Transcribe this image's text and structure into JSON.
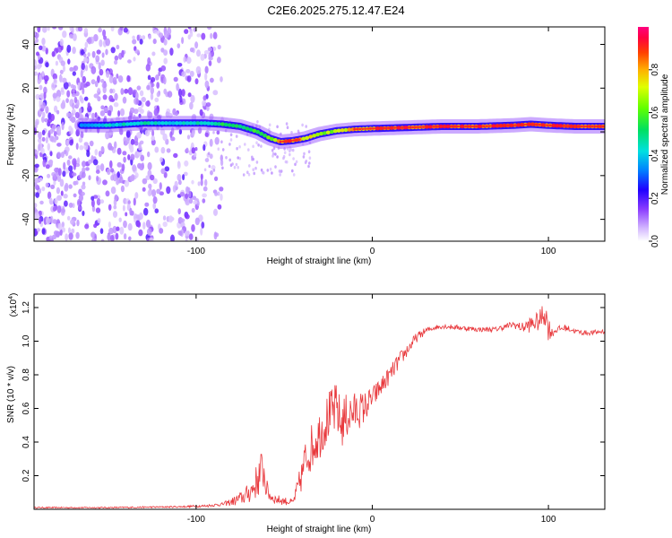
{
  "title": "C2E6.2025.275.12.47.E24",
  "chart_data": [
    {
      "type": "heatmap",
      "name": "spectrogram",
      "xlabel": "Height of straight line (km)",
      "ylabel": "Frequency (Hz)",
      "xlim": [
        -192,
        132
      ],
      "ylim": [
        -50,
        48
      ],
      "xticks": [
        -100,
        0,
        100
      ],
      "xtick_labels": [
        "-100",
        "0",
        "100"
      ],
      "yticks": [
        -40,
        -20,
        0,
        20,
        40
      ],
      "ytick_labels": [
        "-40",
        "-20",
        "0",
        "20",
        "40"
      ],
      "colorbar": {
        "label": "Normalized spectral amplitude",
        "range": [
          0,
          1
        ],
        "ticks": [
          0.0,
          0.2,
          0.4,
          0.6,
          0.8
        ],
        "tick_labels": [
          "0.0",
          "0.2",
          "0.4",
          "0.6",
          "0.8"
        ]
      },
      "ridge": {
        "x": [
          -165,
          -150,
          -130,
          -110,
          -95,
          -85,
          -75,
          -65,
          -58,
          -52,
          -45,
          -38,
          -30,
          -20,
          -10,
          0,
          20,
          40,
          60,
          80,
          90,
          100,
          115,
          130
        ],
        "freq": [
          3,
          3,
          4,
          4,
          4,
          3.5,
          2.5,
          0,
          -3,
          -4.5,
          -4,
          -3,
          -1,
          0.5,
          1.2,
          1.5,
          2,
          2.5,
          2.5,
          3,
          3.5,
          3,
          2.5,
          2.5
        ],
        "amp": [
          0.35,
          0.45,
          0.5,
          0.45,
          0.5,
          0.55,
          0.55,
          0.6,
          0.65,
          0.85,
          0.9,
          0.8,
          0.65,
          0.75,
          0.85,
          0.9,
          0.95,
          0.95,
          0.95,
          0.95,
          0.9,
          0.95,
          0.95,
          0.95
        ]
      },
      "noise_region_x": [
        -192,
        -85
      ]
    },
    {
      "type": "line",
      "name": "snr",
      "xlabel": "Height of straight line (km)",
      "ylabel": "SNR (10 * v/v)",
      "scale_label": "(x10",
      "scale_exponent": "4",
      "scale_close": ")",
      "xlim": [
        -192,
        132
      ],
      "ylim": [
        0,
        1.28
      ],
      "xticks": [
        -100,
        0,
        100
      ],
      "xtick_labels": [
        "-100",
        "0",
        "100"
      ],
      "yticks": [
        0.2,
        0.4,
        0.6,
        0.8,
        1.0,
        1.2
      ],
      "ytick_labels": [
        "0.2",
        "0.4",
        "0.6",
        "0.8",
        "1.0",
        "1.2"
      ],
      "color": "#e8383c",
      "series": {
        "name": "SNR",
        "x": [
          -192,
          -150,
          -110,
          -95,
          -85,
          -78,
          -72,
          -68,
          -64,
          -62,
          -60,
          -58,
          -55,
          -50,
          -45,
          -40,
          -38,
          -35,
          -30,
          -25,
          -20,
          -18,
          -15,
          -10,
          -5,
          0,
          5,
          10,
          15,
          20,
          25,
          30,
          35,
          40,
          50,
          60,
          70,
          80,
          85,
          90,
          95,
          98,
          100,
          102,
          105,
          110,
          115,
          120,
          125,
          132
        ],
        "y": [
          0.01,
          0.01,
          0.015,
          0.02,
          0.03,
          0.05,
          0.08,
          0.12,
          0.2,
          0.25,
          0.12,
          0.08,
          0.06,
          0.05,
          0.04,
          0.2,
          0.3,
          0.36,
          0.45,
          0.55,
          0.6,
          0.5,
          0.55,
          0.58,
          0.6,
          0.66,
          0.73,
          0.8,
          0.88,
          0.95,
          1.02,
          1.06,
          1.08,
          1.09,
          1.08,
          1.07,
          1.07,
          1.1,
          1.08,
          1.1,
          1.12,
          1.18,
          1.08,
          1.05,
          1.07,
          1.08,
          1.06,
          1.05,
          1.05,
          1.06
        ],
        "noise": [
          0.004,
          0.004,
          0.005,
          0.008,
          0.01,
          0.03,
          0.05,
          0.08,
          0.12,
          0.14,
          0.06,
          0.04,
          0.03,
          0.025,
          0.02,
          0.1,
          0.12,
          0.14,
          0.15,
          0.15,
          0.16,
          0.16,
          0.14,
          0.12,
          0.1,
          0.07,
          0.06,
          0.05,
          0.05,
          0.04,
          0.03,
          0.02,
          0.015,
          0.015,
          0.015,
          0.015,
          0.015,
          0.02,
          0.03,
          0.05,
          0.06,
          0.09,
          0.08,
          0.03,
          0.02,
          0.02,
          0.015,
          0.015,
          0.015,
          0.015
        ]
      }
    }
  ]
}
